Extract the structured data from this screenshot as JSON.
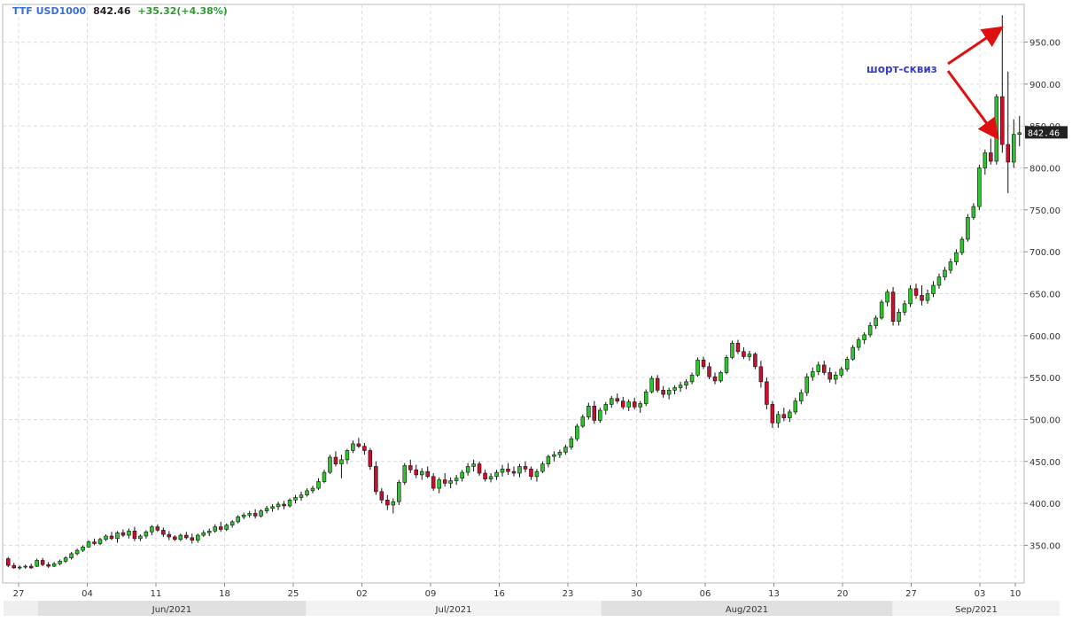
{
  "header": {
    "symbol": "TTF USD1000",
    "price": "842.46",
    "change": "+35.32(+4.38%)"
  },
  "annotation": {
    "text": "шорт-сквиз"
  },
  "colors": {
    "up": "#2fc42f",
    "down": "#c8102e",
    "grid": "#dcdcdc",
    "symbol": "#3a6fd8",
    "change": "#2f9a2f",
    "annotation_text": "#3b3fbf",
    "arrow": "#e01010",
    "last_price_box": "#222222"
  },
  "chart_data": {
    "type": "candlestick",
    "title": "TTF USD1000",
    "last_price": 842.46,
    "ylim": [
      305,
      995
    ],
    "y_ticks": [
      350,
      400,
      450,
      500,
      550,
      600,
      650,
      700,
      750,
      800,
      850,
      900,
      950
    ],
    "y_tick_labels": [
      "350.00",
      "400.00",
      "450.00",
      "500.00",
      "550.00",
      "600.00",
      "650.00",
      "700.00",
      "750.00",
      "800.00",
      "850.00",
      "900.00",
      "950.00"
    ],
    "x_tick_labels": [
      "27",
      "04",
      "11",
      "18",
      "25",
      "02",
      "09",
      "16",
      "23",
      "30",
      "06",
      "13",
      "20",
      "27",
      "03",
      "10"
    ],
    "month_labels": [
      "Jun/2021",
      "Jul/2021",
      "Aug/2021",
      "Sep/2021"
    ],
    "grid": true,
    "candles": [
      [
        334,
        336,
        324,
        326
      ],
      [
        326,
        329,
        322,
        323
      ],
      [
        323,
        326,
        321,
        324
      ],
      [
        324,
        327,
        322,
        325
      ],
      [
        325,
        328,
        322,
        323
      ],
      [
        325,
        334,
        324,
        332
      ],
      [
        332,
        335,
        325,
        327
      ],
      [
        327,
        330,
        323,
        325
      ],
      [
        325,
        330,
        324,
        328
      ],
      [
        328,
        333,
        326,
        331
      ],
      [
        331,
        337,
        329,
        335
      ],
      [
        335,
        342,
        333,
        340
      ],
      [
        340,
        346,
        338,
        344
      ],
      [
        344,
        350,
        342,
        348
      ],
      [
        348,
        356,
        347,
        354
      ],
      [
        354,
        358,
        350,
        352
      ],
      [
        352,
        359,
        350,
        357
      ],
      [
        357,
        363,
        355,
        361
      ],
      [
        361,
        366,
        356,
        358
      ],
      [
        358,
        367,
        353,
        365
      ],
      [
        365,
        369,
        360,
        362
      ],
      [
        362,
        370,
        358,
        367
      ],
      [
        367,
        372,
        355,
        358
      ],
      [
        358,
        363,
        355,
        361
      ],
      [
        361,
        368,
        358,
        366
      ],
      [
        366,
        374,
        362,
        372
      ],
      [
        372,
        375,
        366,
        368
      ],
      [
        368,
        371,
        360,
        363
      ],
      [
        363,
        367,
        356,
        360
      ],
      [
        360,
        362,
        355,
        357
      ],
      [
        357,
        364,
        355,
        362
      ],
      [
        362,
        366,
        357,
        359
      ],
      [
        359,
        364,
        352,
        356
      ],
      [
        356,
        364,
        353,
        362
      ],
      [
        362,
        368,
        360,
        365
      ],
      [
        365,
        370,
        361,
        367
      ],
      [
        367,
        375,
        365,
        372
      ],
      [
        372,
        378,
        366,
        369
      ],
      [
        369,
        376,
        367,
        374
      ],
      [
        374,
        380,
        371,
        378
      ],
      [
        378,
        386,
        376,
        384
      ],
      [
        384,
        389,
        381,
        386
      ],
      [
        386,
        391,
        383,
        388
      ],
      [
        388,
        393,
        382,
        385
      ],
      [
        385,
        393,
        383,
        391
      ],
      [
        391,
        397,
        388,
        394
      ],
      [
        394,
        399,
        390,
        396
      ],
      [
        396,
        402,
        392,
        399
      ],
      [
        399,
        403,
        393,
        397
      ],
      [
        397,
        406,
        395,
        404
      ],
      [
        404,
        410,
        400,
        407
      ],
      [
        407,
        414,
        403,
        410
      ],
      [
        410,
        418,
        408,
        415
      ],
      [
        415,
        421,
        412,
        418
      ],
      [
        418,
        430,
        416,
        426
      ],
      [
        426,
        440,
        424,
        437
      ],
      [
        437,
        458,
        435,
        455
      ],
      [
        455,
        462,
        444,
        447
      ],
      [
        447,
        458,
        430,
        452
      ],
      [
        452,
        465,
        447,
        463
      ],
      [
        463,
        475,
        460,
        471
      ],
      [
        471,
        478,
        466,
        468
      ],
      [
        468,
        472,
        458,
        463
      ],
      [
        463,
        466,
        440,
        444
      ],
      [
        444,
        450,
        410,
        414
      ],
      [
        414,
        418,
        400,
        404
      ],
      [
        404,
        410,
        392,
        398
      ],
      [
        398,
        406,
        388,
        402
      ],
      [
        402,
        428,
        398,
        425
      ],
      [
        425,
        448,
        422,
        445
      ],
      [
        445,
        452,
        436,
        440
      ],
      [
        440,
        446,
        430,
        434
      ],
      [
        434,
        442,
        428,
        438
      ],
      [
        438,
        444,
        430,
        432
      ],
      [
        432,
        436,
        415,
        418
      ],
      [
        418,
        431,
        412,
        428
      ],
      [
        428,
        436,
        420,
        424
      ],
      [
        424,
        431,
        418,
        427
      ],
      [
        427,
        434,
        422,
        430
      ],
      [
        430,
        440,
        426,
        437
      ],
      [
        437,
        448,
        433,
        444
      ],
      [
        444,
        452,
        438,
        447
      ],
      [
        447,
        450,
        433,
        436
      ],
      [
        436,
        440,
        426,
        429
      ],
      [
        429,
        436,
        425,
        432
      ],
      [
        432,
        440,
        428,
        437
      ],
      [
        437,
        446,
        432,
        441
      ],
      [
        441,
        448,
        434,
        438
      ],
      [
        438,
        444,
        432,
        436
      ],
      [
        436,
        447,
        431,
        444
      ],
      [
        444,
        450,
        437,
        441
      ],
      [
        441,
        444,
        428,
        432
      ],
      [
        432,
        441,
        426,
        438
      ],
      [
        438,
        450,
        436,
        447
      ],
      [
        447,
        458,
        443,
        456
      ],
      [
        456,
        462,
        450,
        458
      ],
      [
        458,
        464,
        454,
        461
      ],
      [
        461,
        470,
        458,
        467
      ],
      [
        467,
        480,
        464,
        477
      ],
      [
        477,
        495,
        474,
        492
      ],
      [
        492,
        506,
        490,
        503
      ],
      [
        503,
        520,
        500,
        516
      ],
      [
        516,
        522,
        495,
        499
      ],
      [
        499,
        514,
        496,
        511
      ],
      [
        511,
        521,
        506,
        518
      ],
      [
        518,
        528,
        514,
        525
      ],
      [
        525,
        531,
        519,
        522
      ],
      [
        522,
        527,
        512,
        515
      ],
      [
        515,
        524,
        510,
        521
      ],
      [
        521,
        526,
        512,
        515
      ],
      [
        515,
        522,
        508,
        519
      ],
      [
        519,
        536,
        516,
        533
      ],
      [
        533,
        552,
        531,
        549
      ],
      [
        549,
        553,
        532,
        535
      ],
      [
        535,
        540,
        526,
        530
      ],
      [
        530,
        538,
        524,
        535
      ],
      [
        535,
        541,
        530,
        538
      ],
      [
        538,
        545,
        533,
        541
      ],
      [
        541,
        548,
        536,
        545
      ],
      [
        545,
        556,
        542,
        553
      ],
      [
        553,
        574,
        551,
        571
      ],
      [
        571,
        575,
        560,
        563
      ],
      [
        563,
        568,
        548,
        551
      ],
      [
        551,
        556,
        542,
        546
      ],
      [
        546,
        558,
        544,
        556
      ],
      [
        556,
        577,
        554,
        574
      ],
      [
        574,
        594,
        572,
        591
      ],
      [
        591,
        595,
        578,
        581
      ],
      [
        581,
        586,
        572,
        575
      ],
      [
        575,
        582,
        570,
        578
      ],
      [
        578,
        580,
        560,
        563
      ],
      [
        563,
        570,
        538,
        545
      ],
      [
        545,
        550,
        512,
        518
      ],
      [
        518,
        522,
        490,
        496
      ],
      [
        496,
        510,
        490,
        506
      ],
      [
        506,
        514,
        498,
        502
      ],
      [
        502,
        512,
        497,
        509
      ],
      [
        509,
        526,
        506,
        522
      ],
      [
        522,
        536,
        518,
        532
      ],
      [
        532,
        555,
        528,
        551
      ],
      [
        551,
        562,
        546,
        557
      ],
      [
        557,
        569,
        553,
        565
      ],
      [
        565,
        570,
        553,
        556
      ],
      [
        556,
        562,
        544,
        548
      ],
      [
        548,
        557,
        542,
        553
      ],
      [
        553,
        563,
        550,
        560
      ],
      [
        560,
        575,
        557,
        572
      ],
      [
        572,
        589,
        570,
        586
      ],
      [
        586,
        598,
        582,
        595
      ],
      [
        595,
        604,
        590,
        601
      ],
      [
        601,
        616,
        598,
        612
      ],
      [
        612,
        624,
        608,
        621
      ],
      [
        621,
        643,
        619,
        640
      ],
      [
        640,
        655,
        635,
        652
      ],
      [
        652,
        658,
        612,
        617
      ],
      [
        617,
        632,
        612,
        628
      ],
      [
        628,
        642,
        624,
        638
      ],
      [
        638,
        660,
        634,
        656
      ],
      [
        656,
        662,
        644,
        648
      ],
      [
        648,
        660,
        636,
        642
      ],
      [
        642,
        655,
        638,
        650
      ],
      [
        650,
        665,
        646,
        660
      ],
      [
        660,
        674,
        656,
        670
      ],
      [
        670,
        682,
        666,
        678
      ],
      [
        678,
        692,
        674,
        688
      ],
      [
        688,
        703,
        684,
        699
      ],
      [
        699,
        718,
        696,
        715
      ],
      [
        715,
        745,
        712,
        741
      ],
      [
        741,
        758,
        738,
        754
      ],
      [
        754,
        804,
        750,
        800
      ],
      [
        800,
        822,
        792,
        818
      ],
      [
        818,
        835,
        804,
        808
      ],
      [
        808,
        888,
        804,
        885
      ],
      [
        885,
        982,
        818,
        828
      ],
      [
        828,
        915,
        770,
        807
      ],
      [
        807,
        858,
        800,
        840
      ],
      [
        840,
        862,
        826,
        842
      ]
    ]
  }
}
